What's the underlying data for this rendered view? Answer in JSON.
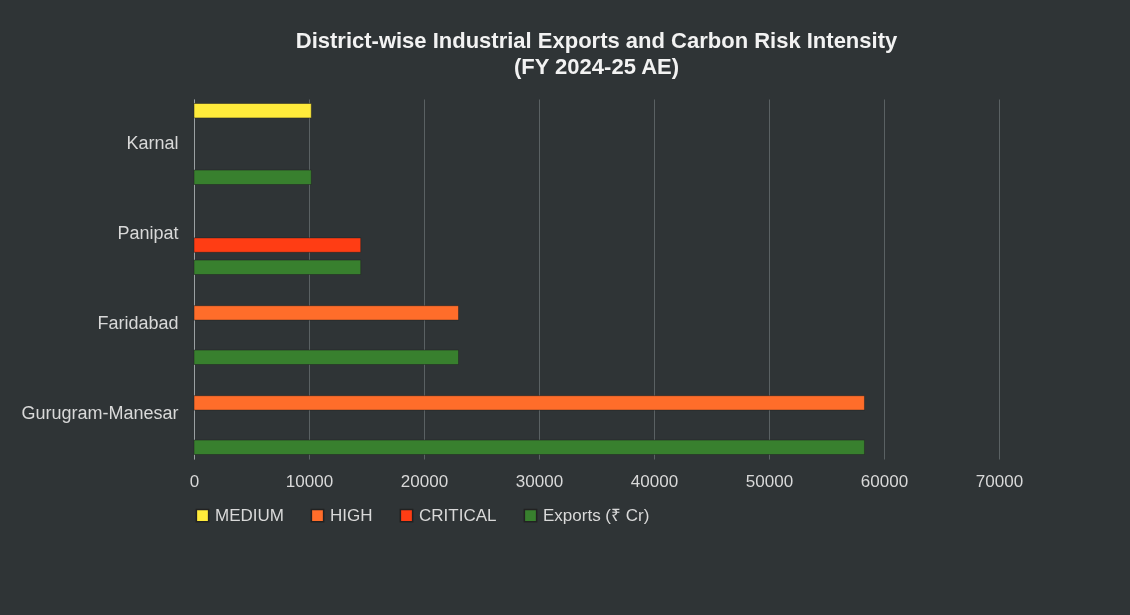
{
  "chart_data": {
    "type": "bar",
    "orientation": "horizontal",
    "title": "District-wise Industrial Exports and Carbon Risk Intensity (FY 2024-25 AE)",
    "categories": [
      "Karnal",
      "Panipat",
      "Faridabad",
      "Gurugram-Manesar"
    ],
    "series": [
      {
        "name": "MEDIUM",
        "color": "#ffeb3b",
        "values": [
          10200,
          null,
          null,
          null
        ]
      },
      {
        "name": "HIGH",
        "color": "#ff6d2a",
        "values": [
          null,
          null,
          23000,
          58300
        ]
      },
      {
        "name": "CRITICAL",
        "color": "#ff3d14",
        "values": [
          null,
          14500,
          null,
          null
        ]
      },
      {
        "name": "Exports (₹ Cr)",
        "color": "#38802e",
        "values": [
          10200,
          14500,
          23000,
          58300
        ]
      }
    ],
    "xlim": [
      0,
      70000
    ],
    "xticks": [
      0,
      10000,
      20000,
      30000,
      40000,
      50000,
      60000,
      70000
    ],
    "grid": "x",
    "legend": "bottom"
  }
}
